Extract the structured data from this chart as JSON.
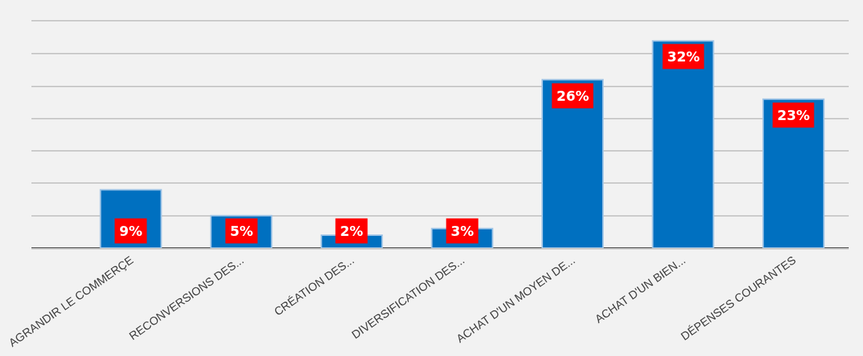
{
  "chart_data": {
    "type": "bar",
    "categories": [
      "AGRANDIR LE COMMERÇE",
      "RECONVERSIONS DES...",
      "CRÉATION DES...",
      "DIVERSIFICATION DES...",
      "ACHAT D'UN MOYEN DE...",
      "ACHAT D'UN BIEN...",
      "DÉPENSES COURANTES"
    ],
    "values": [
      9,
      5,
      2,
      3,
      26,
      32,
      23
    ],
    "value_labels": [
      "9%",
      "5%",
      "2%",
      "3%",
      "26%",
      "32%",
      "23%"
    ],
    "color": "#0070c0",
    "ylim": [
      0,
      35
    ],
    "yticks": [
      {
        "value": 0,
        "label": null
      },
      {
        "value": 5,
        "label": null
      },
      {
        "value": 10,
        "label": null
      },
      {
        "value": 15,
        "label": null
      },
      {
        "value": 20,
        "label": null
      },
      {
        "value": 25,
        "label": null
      },
      {
        "value": 30,
        "label": null
      },
      {
        "value": 35,
        "label": null
      }
    ],
    "tick_labels": "x",
    "grid": "y",
    "legend": false
  }
}
